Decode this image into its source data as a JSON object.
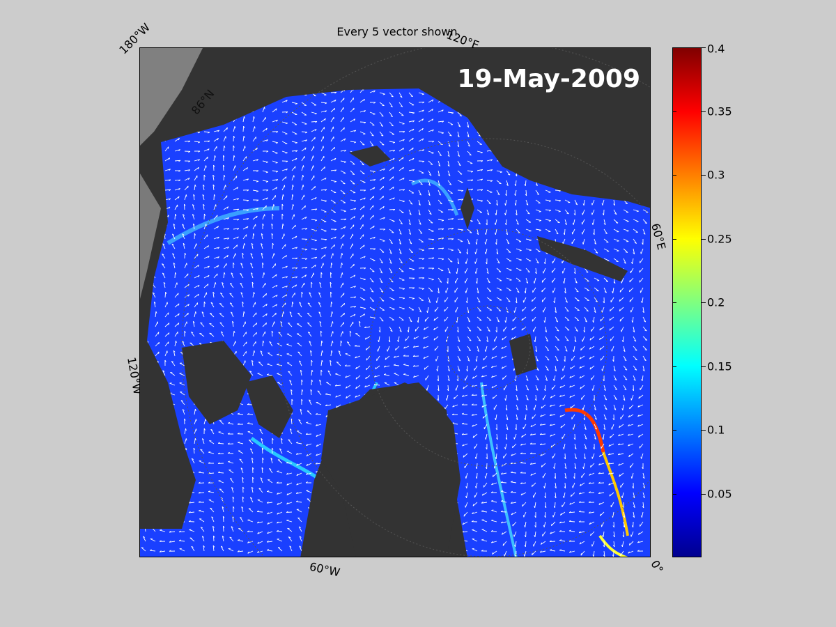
{
  "figure": {
    "title": "Every 5 vector shown",
    "date": "19-May-2009"
  },
  "map": {
    "coordinate_labels": {
      "top_left": "180°W",
      "top_right": "120°E",
      "right": "60°E",
      "bottom_right": "0°",
      "bottom": "60°W",
      "left": "120°W",
      "lat": "86°N"
    },
    "colors": {
      "land": "#333333",
      "coast_shelf": "#808080",
      "ice_field": "#1a40ff",
      "vectors": "#ffffff"
    }
  },
  "colorbar": {
    "ticks": [
      {
        "value": 0.4,
        "label": "0.4"
      },
      {
        "value": 0.35,
        "label": "0.35"
      },
      {
        "value": 0.3,
        "label": "0.3"
      },
      {
        "value": 0.25,
        "label": "0.25"
      },
      {
        "value": 0.2,
        "label": "0.2"
      },
      {
        "value": 0.15,
        "label": "0.15"
      },
      {
        "value": 0.1,
        "label": "0.1"
      },
      {
        "value": 0.05,
        "label": "0.05"
      }
    ],
    "min": 0,
    "max": 0.4,
    "colormap": "jet"
  }
}
